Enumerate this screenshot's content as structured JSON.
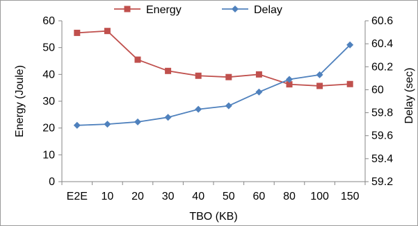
{
  "chart_data": {
    "type": "line",
    "categories": [
      "E2E",
      "10",
      "20",
      "30",
      "40",
      "50",
      "60",
      "80",
      "100",
      "150"
    ],
    "series": [
      {
        "name": "Energy",
        "axis": "left",
        "color": "#c0504d",
        "marker": "square",
        "values": [
          55.5,
          56.2,
          45.5,
          41.3,
          39.5,
          39.0,
          40.0,
          36.3,
          35.7,
          36.4
        ]
      },
      {
        "name": "Delay",
        "axis": "right",
        "color": "#4f81bd",
        "marker": "diamond",
        "values": [
          59.69,
          59.7,
          59.72,
          59.76,
          59.83,
          59.86,
          59.98,
          60.09,
          60.13,
          60.39
        ]
      }
    ],
    "xlabel": "TBO (KB)",
    "ylabel": "Energy (Joule)",
    "y2label": "Delay (sec)",
    "ylim": [
      0,
      60
    ],
    "y2lim": [
      59.2,
      60.6
    ],
    "yticks": [
      "0",
      "10",
      "20",
      "30",
      "40",
      "50",
      "60"
    ],
    "y2ticks": [
      "59.2",
      "59.4",
      "59.6",
      "59.8",
      "60",
      "60.2",
      "60.4",
      "60.6"
    ],
    "grid": false,
    "legend_position": "top"
  }
}
